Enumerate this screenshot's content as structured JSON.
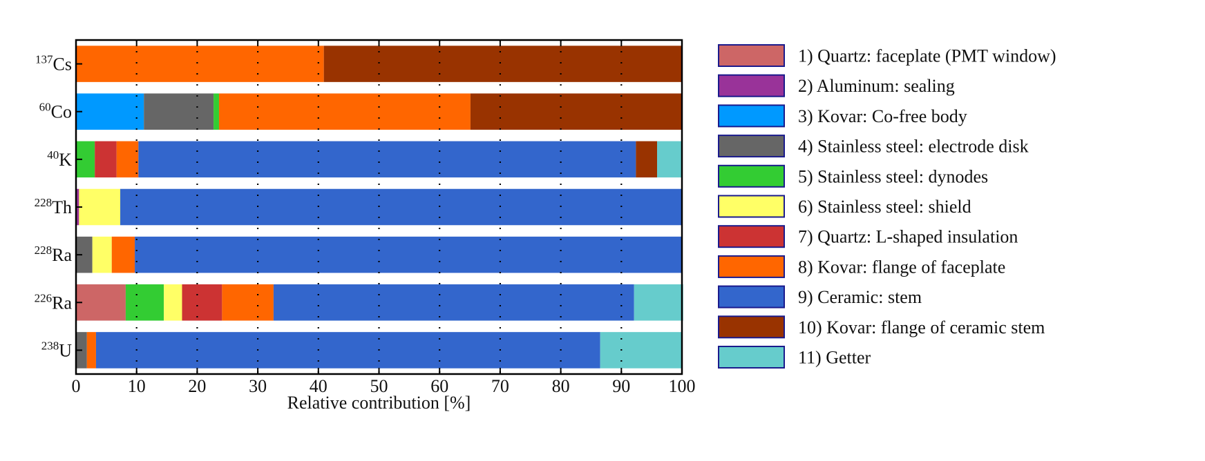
{
  "chart_data": {
    "type": "bar",
    "orientation": "horizontal",
    "stacked": true,
    "xlabel": "Relative contribution [%]",
    "xlim": [
      0,
      100
    ],
    "xticks": [
      "0",
      "10",
      "20",
      "30",
      "40",
      "50",
      "60",
      "70",
      "80",
      "90",
      "100"
    ],
    "grid": "vertical dotted",
    "legend_position": "right",
    "categories": [
      {
        "mass": "137",
        "symbol": "Cs"
      },
      {
        "mass": "60",
        "symbol": "Co"
      },
      {
        "mass": "40",
        "symbol": "K"
      },
      {
        "mass": "228",
        "symbol": "Th"
      },
      {
        "mass": "228",
        "symbol": "Ra"
      },
      {
        "mass": "226",
        "symbol": "Ra"
      },
      {
        "mass": "238",
        "symbol": "U"
      }
    ],
    "series": [
      {
        "name": "1) Quartz: faceplate (PMT window)",
        "color": "#cd6666",
        "values": [
          0,
          0,
          0,
          0,
          0,
          8.2,
          0
        ]
      },
      {
        "name": "2) Aluminum: sealing",
        "color": "#993399",
        "values": [
          0,
          0,
          0,
          0.5,
          0,
          0,
          0
        ]
      },
      {
        "name": "3) Kovar: Co-free body",
        "color": "#0099ff",
        "values": [
          0,
          11.2,
          0,
          0,
          0,
          0,
          0
        ]
      },
      {
        "name": "4) Stainless steel: electrode disk",
        "color": "#666666",
        "values": [
          0,
          11.5,
          0,
          0,
          2.7,
          0,
          1.8
        ]
      },
      {
        "name": "5) Stainless steel: dynodes",
        "color": "#33cc33",
        "values": [
          0,
          0.9,
          3.1,
          0,
          0,
          6.3,
          0
        ]
      },
      {
        "name": "6) Stainless steel: shield",
        "color": "#ffff66",
        "values": [
          0,
          0,
          0,
          6.8,
          3.2,
          3.0,
          0
        ]
      },
      {
        "name": "7) Quartz: L-shaped insulation",
        "color": "#cc3333",
        "values": [
          0,
          0,
          3.6,
          0,
          0,
          6.6,
          0
        ]
      },
      {
        "name": "8) Kovar: flange of faceplate",
        "color": "#ff6600",
        "values": [
          40.9,
          41.5,
          3.6,
          0,
          3.8,
          8.5,
          1.5
        ]
      },
      {
        "name": "9) Ceramic: stem",
        "color": "#3366cc",
        "values": [
          0,
          0,
          82.1,
          92.7,
          90.3,
          59.5,
          83.2
        ]
      },
      {
        "name": "10) Kovar: flange of ceramic stem",
        "color": "#993300",
        "values": [
          59.1,
          34.9,
          3.5,
          0,
          0,
          0,
          0
        ]
      },
      {
        "name": "11) Getter",
        "color": "#66cccc",
        "values": [
          0,
          0,
          4.1,
          0,
          0,
          8.1,
          13.5
        ]
      }
    ]
  }
}
